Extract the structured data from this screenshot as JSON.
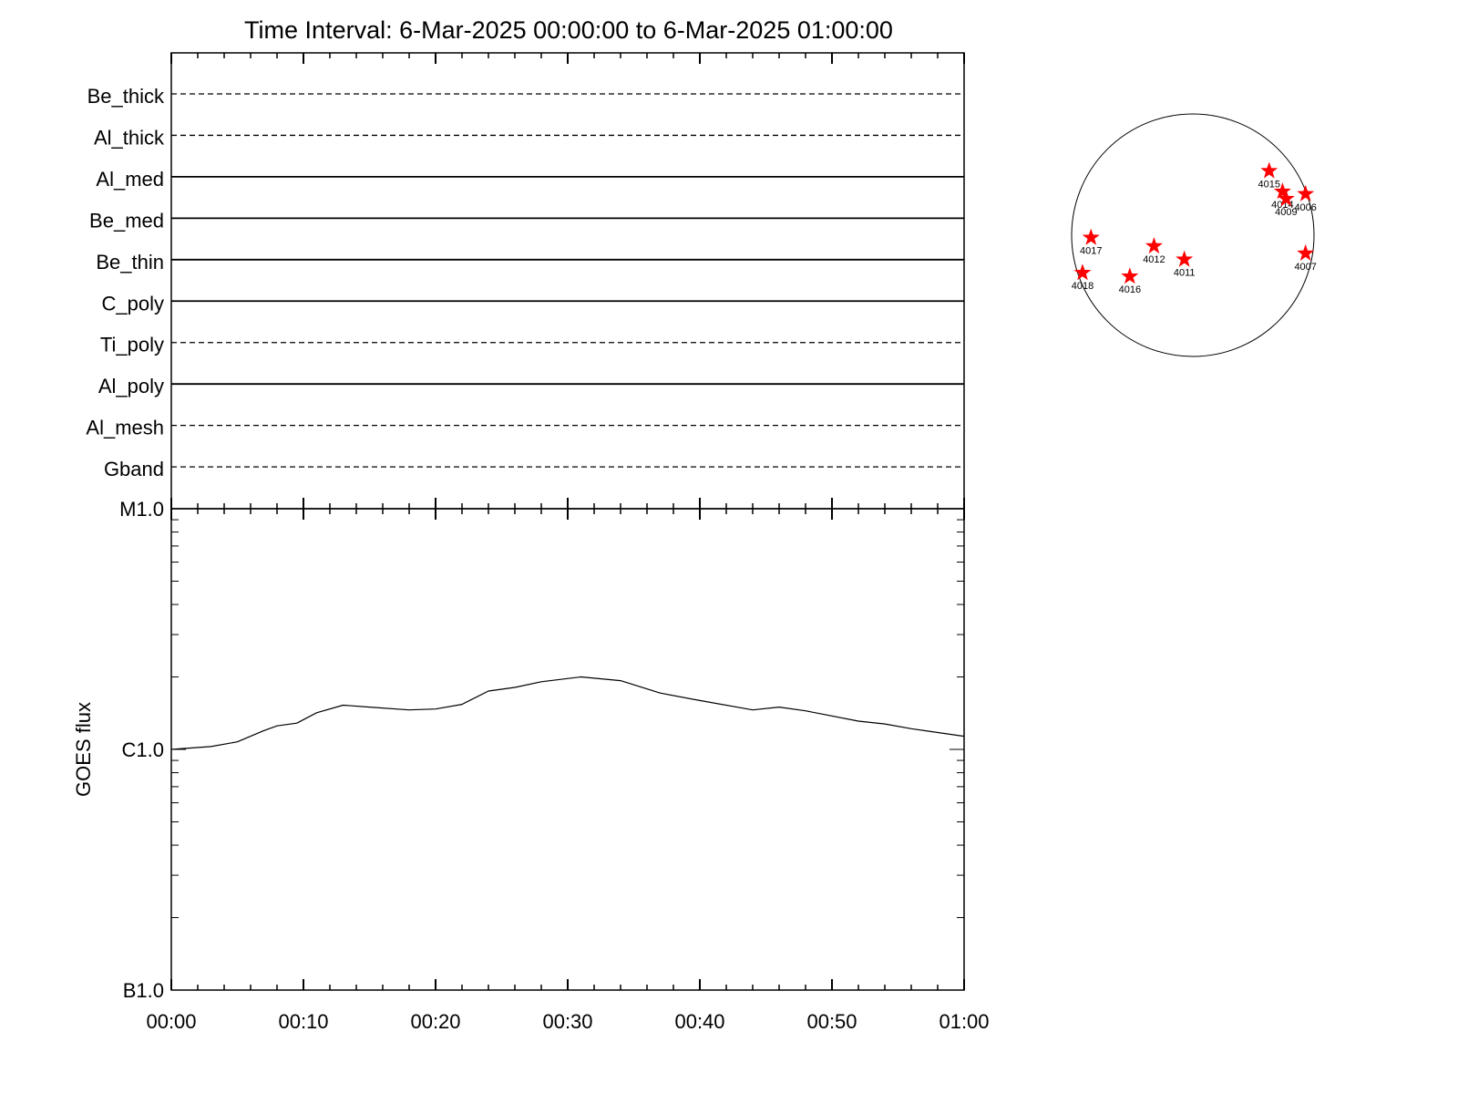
{
  "chart_data": [
    {
      "type": "filters",
      "title": "Time Interval:  6-Mar-2025 00:00:00 to  6-Mar-2025 01:00:00",
      "series": [
        {
          "name": "Be_thick",
          "style": "dashed"
        },
        {
          "name": "Al_thick",
          "style": "dashed"
        },
        {
          "name": "Al_med",
          "style": "solid"
        },
        {
          "name": "Be_med",
          "style": "solid"
        },
        {
          "name": "Be_thin",
          "style": "solid"
        },
        {
          "name": "C_poly",
          "style": "solid"
        },
        {
          "name": "Ti_poly",
          "style": "dashed"
        },
        {
          "name": "Al_poly",
          "style": "solid"
        },
        {
          "name": "Al_mesh",
          "style": "dashed"
        },
        {
          "name": "Gband",
          "style": "dashed"
        }
      ]
    },
    {
      "type": "line",
      "ylabel": "GOES flux",
      "log": true,
      "color": "#000000",
      "x": [
        0,
        3,
        5,
        7,
        8,
        9.5,
        11,
        13,
        15,
        18,
        20,
        22,
        24,
        26,
        28,
        31,
        34,
        37,
        40,
        44,
        46,
        48,
        52,
        54,
        56,
        60
      ],
      "values": [
        1e-06,
        1.027e-06,
        1.075e-06,
        1.197e-06,
        1.252e-06,
        1.286e-06,
        1.42e-06,
        1.527e-06,
        1.499e-06,
        1.459e-06,
        1.472e-06,
        1.539e-06,
        1.747e-06,
        1.81e-06,
        1.91e-06,
        2e-06,
        1.93e-06,
        1.715e-06,
        1.596e-06,
        1.459e-06,
        1.499e-06,
        1.446e-06,
        1.31e-06,
        1.275e-06,
        1.219e-06,
        1.134e-06
      ],
      "xlim": [
        0,
        60
      ],
      "xticks": [
        {
          "value": 0,
          "label": "00:00"
        },
        {
          "value": 10,
          "label": "00:10"
        },
        {
          "value": 20,
          "label": "00:20"
        },
        {
          "value": 30,
          "label": "00:30"
        },
        {
          "value": 40,
          "label": "00:40"
        },
        {
          "value": 50,
          "label": "00:50"
        },
        {
          "value": 60,
          "label": "01:00"
        }
      ],
      "xminorticks": [
        2,
        4,
        6,
        8,
        12,
        14,
        16,
        18,
        22,
        24,
        26,
        28,
        32,
        34,
        36,
        38,
        42,
        44,
        46,
        48,
        52,
        54,
        56,
        58
      ],
      "ylim": [
        1e-07,
        1e-05
      ],
      "yticks": [
        {
          "value": 1e-07,
          "label": "B1.0"
        },
        {
          "value": 1e-06,
          "label": "C1.0"
        },
        {
          "value": 1e-05,
          "label": "M1.0"
        }
      ],
      "yminorticks": [
        2e-07,
        3e-07,
        4e-07,
        5e-07,
        6e-07,
        7e-07,
        8e-07,
        9e-07,
        2e-06,
        3e-06,
        4e-06,
        5e-06,
        6e-06,
        7e-06,
        8e-06,
        9e-06
      ]
    },
    {
      "type": "disk",
      "color": "#ff0000",
      "xlim": [
        -1,
        1
      ],
      "ylim": [
        -1,
        1
      ],
      "names": [
        "4015",
        "4014",
        "4009",
        "4006",
        "4007",
        "4017",
        "4012",
        "4011",
        "4018",
        "4016"
      ],
      "x": [
        0.63,
        0.74,
        0.77,
        0.93,
        0.93,
        -0.84,
        -0.32,
        -0.07,
        -0.91,
        -0.52
      ],
      "values": [
        0.53,
        0.36,
        0.3,
        0.34,
        -0.15,
        -0.02,
        -0.09,
        -0.2,
        -0.31,
        -0.34
      ]
    }
  ]
}
